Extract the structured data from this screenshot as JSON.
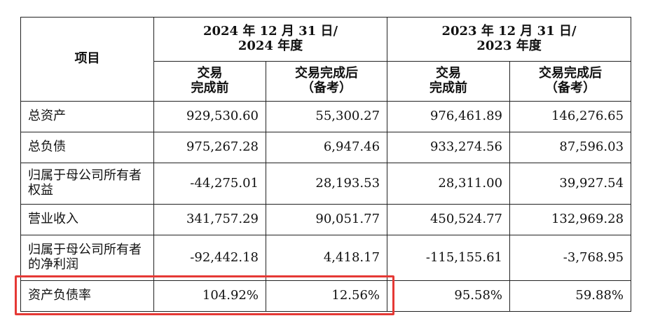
{
  "corner_text": "　 　　",
  "header": {
    "item_label": "项目",
    "period_2024": [
      "2024 年 12 月 31 日/",
      "2024 年度"
    ],
    "period_2023": [
      "2023 年 12 月 31 日/",
      "2023 年度"
    ],
    "before": [
      "交易",
      "完成前"
    ],
    "after": [
      "交易完成后",
      "（备考）"
    ]
  },
  "rows": [
    {
      "label": "总资产",
      "values": [
        "929,530.60",
        "55,300.27",
        "976,461.89",
        "146,276.65"
      ]
    },
    {
      "label": "总负债",
      "values": [
        "975,267.28",
        "6,947.46",
        "933,274.56",
        "87,596.03"
      ]
    },
    {
      "label": "归属于母公司所有者权益",
      "values": [
        "-44,275.01",
        "28,193.53",
        "28,311.00",
        "39,927.54"
      ]
    },
    {
      "label": "营业收入",
      "values": [
        "341,757.29",
        "90,051.77",
        "450,524.77",
        "132,969.28"
      ]
    },
    {
      "label": "归属于母公司所有者的净利润",
      "values": [
        "-92,442.18",
        "4,418.17",
        "-115,155.61",
        "-3,768.95"
      ]
    },
    {
      "label": "资产负债率",
      "values": [
        "104.92%",
        "12.56%",
        "95.58%",
        "59.88%"
      ]
    }
  ],
  "highlight_color": "#e53935"
}
